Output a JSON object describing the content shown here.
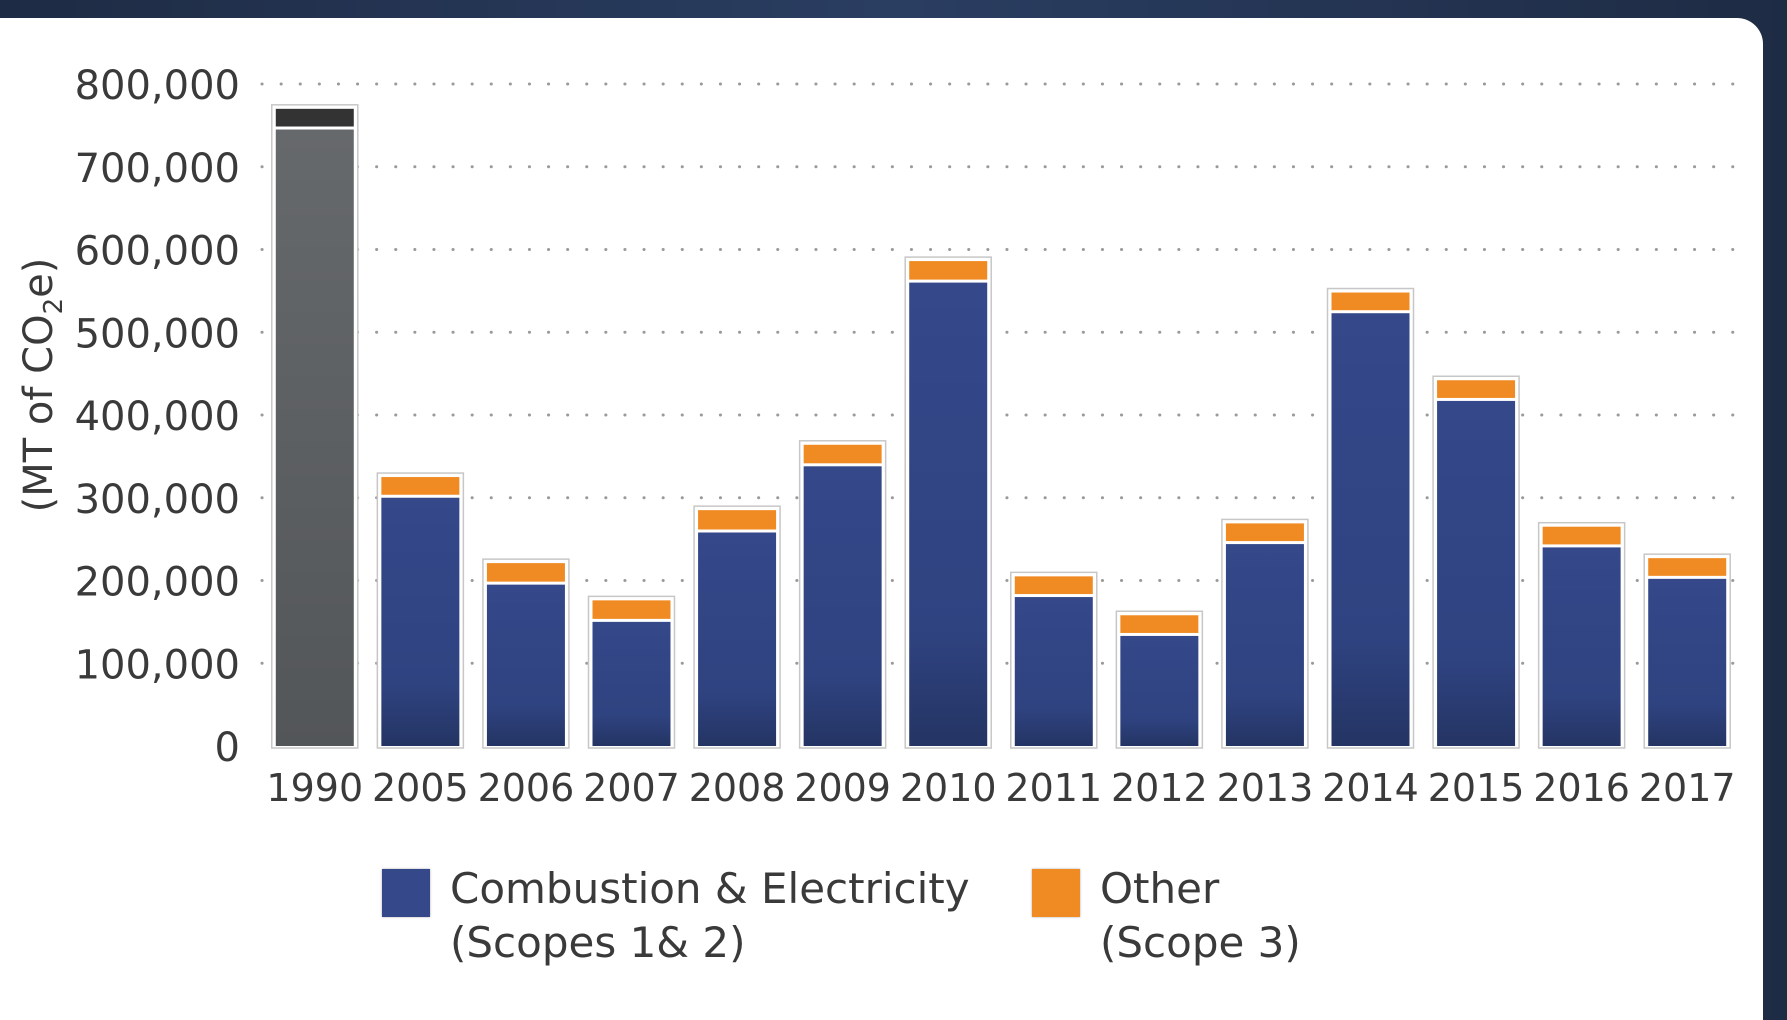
{
  "chart_data": {
    "type": "bar",
    "stacked": true,
    "categories": [
      "1990",
      "2005",
      "2006",
      "2007",
      "2008",
      "2009",
      "2010",
      "2011",
      "2012",
      "2013",
      "2014",
      "2015",
      "2016",
      "2017"
    ],
    "series": [
      {
        "name": "Combustion & Electricity (Scopes 1& 2)",
        "color": "#34488a",
        "values": [
          745000,
          300000,
          195000,
          150000,
          258000,
          338000,
          560000,
          180000,
          133000,
          244000,
          523000,
          417000,
          240000,
          202000
        ]
      },
      {
        "name": "Other (Scope 3)",
        "color": "#f08a22",
        "values": [
          25000,
          25000,
          26000,
          26000,
          27000,
          26000,
          26000,
          25000,
          25000,
          25000,
          25000,
          25000,
          25000,
          25000
        ]
      }
    ],
    "baseline_colors": {
      "1990_scopes_1_2": "#5f6265",
      "1990_scope_3": "#333333"
    },
    "ylabel_parts": [
      "(MT of CO",
      "2",
      "e)"
    ],
    "ylim": [
      0,
      800000
    ],
    "yticks": [
      0,
      100000,
      200000,
      300000,
      400000,
      500000,
      600000,
      700000,
      800000
    ],
    "ytick_labels": [
      "0",
      "100,000",
      "200,000",
      "300,000",
      "400,000",
      "500,000",
      "600,000",
      "700,000",
      "800,000"
    ],
    "grid": "horizontal-dotted",
    "legend_position": "bottom"
  },
  "legend": {
    "items": [
      {
        "color": "#34488a",
        "line1": "Combustion & Electricity",
        "line2": "(Scopes 1& 2)"
      },
      {
        "color": "#f08a22",
        "line1": "Other",
        "line2": "(Scope 3)"
      }
    ]
  }
}
